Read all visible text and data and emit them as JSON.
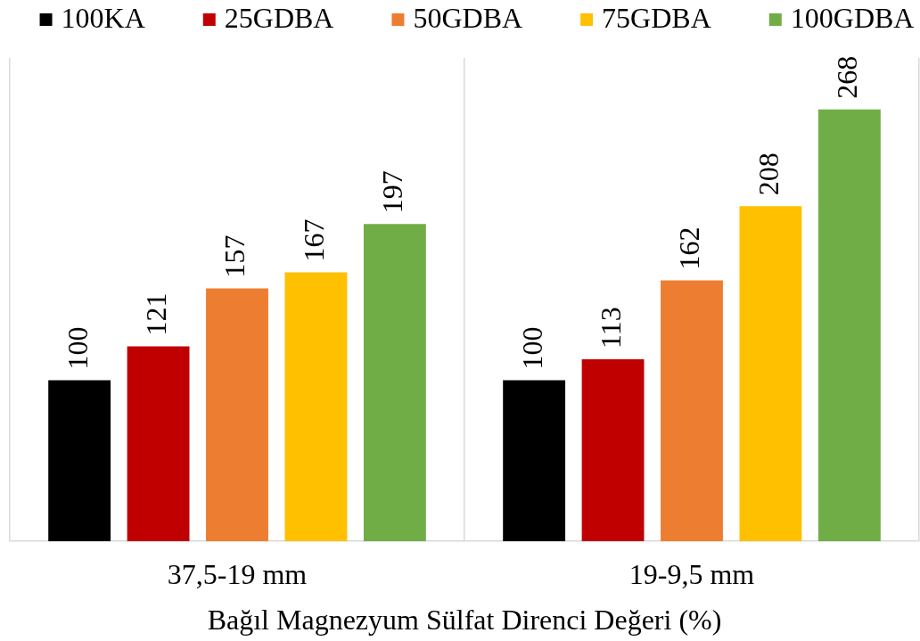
{
  "chart_data": {
    "type": "bar",
    "xlabel": "Bağıl Magnezyum Sülfat Direnci Değeri (%)",
    "categories": [
      "37,5-19 mm",
      "19-9,5 mm"
    ],
    "series": [
      {
        "name": "100KA",
        "color": "#000000",
        "values": [
          100,
          100
        ]
      },
      {
        "name": "25GDBA",
        "color": "#c00000",
        "values": [
          121,
          113
        ]
      },
      {
        "name": "50GDBA",
        "color": "#ed7d31",
        "values": [
          157,
          162
        ]
      },
      {
        "name": "75GDBA",
        "color": "#ffc000",
        "values": [
          167,
          208
        ]
      },
      {
        "name": "100GDBA",
        "color": "#70ad47",
        "values": [
          197,
          268
        ]
      }
    ],
    "data_labels": true,
    "grid": "x",
    "legend": "top",
    "tick_labels": "x"
  }
}
